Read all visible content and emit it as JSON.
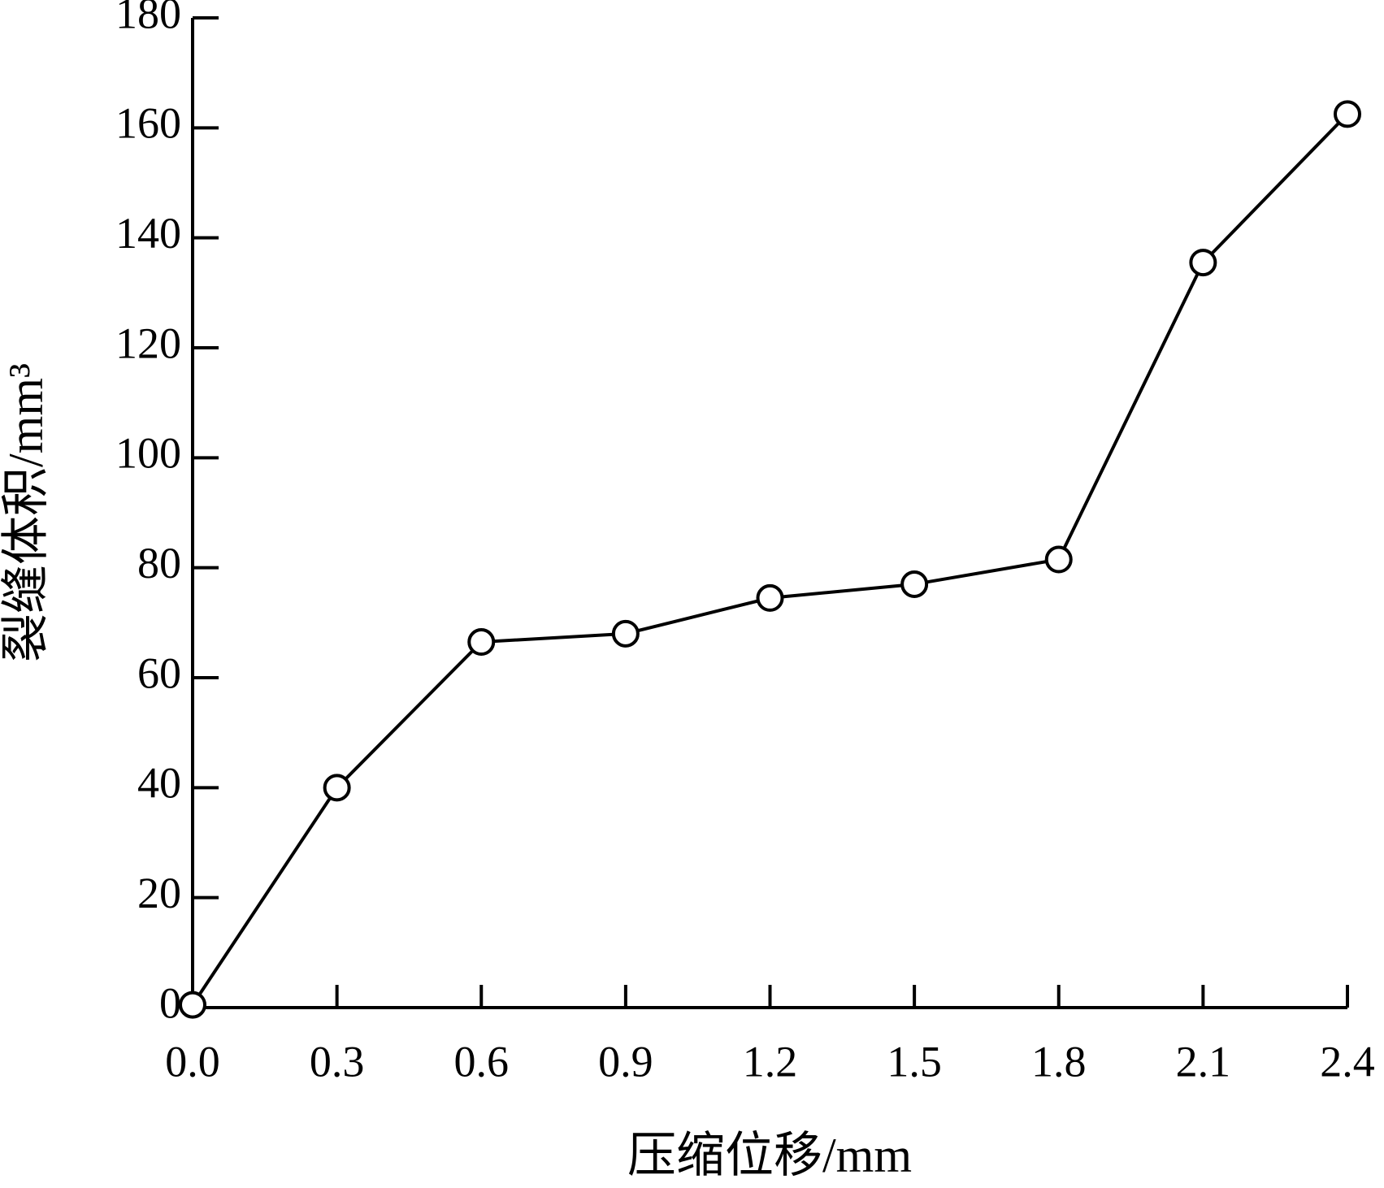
{
  "chart_data": {
    "type": "line",
    "x_label": "压缩位移/mm",
    "y_label": "裂缝体积/mm³",
    "x": [
      0,
      0.3,
      0.6,
      0.9,
      1.2,
      1.5,
      1.8,
      2.1,
      2.4
    ],
    "series": [
      {
        "color": "#000000",
        "values": [
          0.5,
          40,
          66.5,
          68,
          74.5,
          77,
          81.5,
          135.5,
          162.5
        ]
      }
    ],
    "xlim": [
      0,
      2.4
    ],
    "xticks": [
      {
        "value": 0,
        "label": "0.0"
      },
      0.3,
      0.6,
      0.9,
      1.2,
      1.5,
      1.8,
      2.1,
      2.4
    ],
    "ylim": [
      0,
      180
    ],
    "yticks": [
      0,
      20,
      40,
      60,
      80,
      100,
      120,
      140,
      160,
      180
    ],
    "grid": false
  }
}
